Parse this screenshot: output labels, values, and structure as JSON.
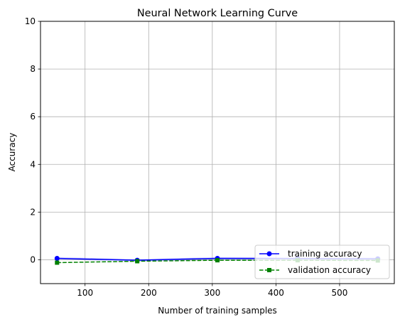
{
  "chart_data": {
    "type": "line",
    "title": "Neural Network Learning Curve",
    "xlabel": "Number of training samples",
    "ylabel": "Accuracy",
    "xlim": [
      30,
      586
    ],
    "ylim": [
      -1,
      10
    ],
    "xticks": [
      100,
      200,
      300,
      400,
      500
    ],
    "yticks": [
      0,
      2,
      4,
      6,
      8,
      10
    ],
    "grid": true,
    "legend_position": "lower right",
    "x": [
      56,
      182,
      308,
      434,
      560
    ],
    "series": [
      {
        "name": "training accuracy",
        "values": [
          0.06,
          -0.02,
          0.06,
          0.05,
          0.04
        ],
        "color": "#0000ff",
        "marker": "circle",
        "linestyle": "solid",
        "band": 0.05,
        "band_color": "#0000ff"
      },
      {
        "name": "validation accuracy",
        "values": [
          -0.12,
          -0.06,
          -0.02,
          -0.02,
          -0.03
        ],
        "color": "#008000",
        "marker": "square",
        "linestyle": "dashed",
        "band": 0.015,
        "band_color": "#008000"
      }
    ]
  }
}
